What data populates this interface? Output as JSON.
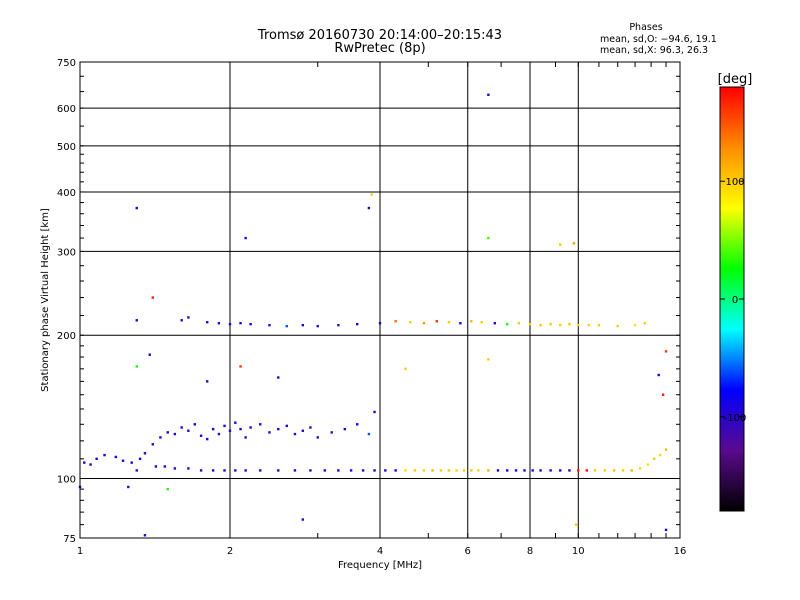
{
  "chart_data": {
    "type": "scatter",
    "title": "Tromsø 20160730 20:14:00–20:15:43",
    "subtitle": "RwPretec (8p)",
    "xlabel": "Frequency [MHz]",
    "ylabel": "Stationary phase Virtual Height [km]",
    "x_scale": "log",
    "y_scale": "log",
    "xlim": [
      1,
      16
    ],
    "ylim": [
      75,
      750
    ],
    "x_ticks": [
      1,
      2,
      4,
      6,
      8,
      10,
      16
    ],
    "x_tick_labels": [
      "1",
      "2",
      "4",
      "6",
      "8",
      "10",
      "16"
    ],
    "y_ticks": [
      75,
      100,
      200,
      300,
      400,
      500,
      600,
      750
    ],
    "y_tick_labels": [
      "75",
      "100",
      "200",
      "300",
      "400",
      "500",
      "600",
      "750"
    ],
    "grid": true,
    "legend": {
      "title": "Phases",
      "lines": [
        "mean, sd,O: −94.6, 19.1",
        "mean, sd,X:  96.3, 26.3"
      ],
      "placement": "top-right"
    },
    "colorbar": {
      "label": "[deg]",
      "range": [
        -180,
        180
      ],
      "ticks": [
        100,
        0,
        -100
      ],
      "tick_labels": [
        "100",
        "0",
        "-100"
      ],
      "colors": [
        "#ff0000",
        "#ff8c00",
        "#ffff00",
        "#00ff00",
        "#00ffff",
        "#0000ff",
        "#5a0a8c",
        "#000000"
      ]
    },
    "series": [
      {
        "values": [
          [
            1.02,
            108,
            -95
          ],
          [
            1.05,
            107,
            -100
          ],
          [
            1.08,
            110,
            -90
          ],
          [
            1.12,
            112,
            -92
          ],
          [
            1.18,
            111,
            -95
          ],
          [
            1.22,
            109,
            -98
          ],
          [
            1.27,
            108,
            -100
          ],
          [
            1.32,
            110,
            -95
          ],
          [
            1.35,
            113,
            -98
          ],
          [
            1.4,
            118,
            -100
          ],
          [
            1.45,
            122,
            -95
          ],
          [
            1.5,
            125,
            -92
          ],
          [
            1.55,
            124,
            -100
          ],
          [
            1.6,
            128,
            -98
          ],
          [
            1.65,
            126,
            -102
          ],
          [
            1.7,
            130,
            -95
          ],
          [
            1.75,
            123,
            -100
          ],
          [
            1.8,
            121,
            -96
          ],
          [
            1.85,
            127,
            -99
          ],
          [
            1.9,
            124,
            -101
          ],
          [
            1.95,
            129,
            -94
          ],
          [
            2.0,
            126,
            -97
          ],
          [
            2.05,
            131,
            -98
          ],
          [
            2.1,
            127,
            -100
          ],
          [
            2.15,
            122,
            -103
          ],
          [
            2.2,
            128,
            -96
          ],
          [
            2.3,
            130,
            -99
          ],
          [
            2.4,
            125,
            -100
          ],
          [
            2.5,
            127,
            -95
          ],
          [
            2.6,
            129,
            -98
          ],
          [
            2.7,
            124,
            -100
          ],
          [
            2.8,
            126,
            -97
          ],
          [
            2.9,
            128,
            -96
          ],
          [
            3.0,
            122,
            -99
          ],
          [
            3.2,
            125,
            -100
          ],
          [
            3.4,
            127,
            -96
          ],
          [
            3.6,
            130,
            -80
          ],
          [
            3.8,
            124,
            -60
          ],
          [
            1.42,
            106,
            -100
          ],
          [
            1.48,
            106,
            -98
          ],
          [
            1.55,
            105,
            -100
          ],
          [
            1.65,
            105,
            -102
          ],
          [
            1.75,
            104,
            -97
          ],
          [
            1.85,
            104,
            -100
          ],
          [
            1.95,
            104,
            -99
          ],
          [
            2.05,
            104,
            -101
          ],
          [
            2.15,
            104,
            -98
          ],
          [
            2.3,
            104,
            -100
          ],
          [
            2.5,
            104,
            -97
          ],
          [
            2.7,
            104,
            -99
          ],
          [
            2.9,
            104,
            -100
          ],
          [
            3.1,
            104,
            -98
          ],
          [
            3.3,
            104,
            -101
          ],
          [
            3.5,
            104,
            -99
          ],
          [
            3.7,
            104,
            -97
          ],
          [
            3.9,
            104,
            -95
          ],
          [
            4.1,
            104,
            -90
          ],
          [
            4.3,
            104,
            -85
          ],
          [
            4.5,
            104,
            90
          ],
          [
            4.7,
            104,
            100
          ],
          [
            4.9,
            104,
            95
          ],
          [
            5.1,
            104,
            110
          ],
          [
            5.3,
            104,
            98
          ],
          [
            5.5,
            104,
            102
          ],
          [
            5.7,
            104,
            96
          ],
          [
            5.9,
            104,
            100
          ],
          [
            6.1,
            104,
            105
          ],
          [
            6.3,
            104,
            98
          ],
          [
            6.6,
            104,
            110
          ],
          [
            6.9,
            104,
            -95
          ],
          [
            7.2,
            104,
            -100
          ],
          [
            7.5,
            104,
            -98
          ],
          [
            7.8,
            104,
            -100
          ],
          [
            8.1,
            104,
            -97
          ],
          [
            8.4,
            104,
            -100
          ],
          [
            8.8,
            104,
            -99
          ],
          [
            9.2,
            104,
            -95
          ],
          [
            9.6,
            104,
            -100
          ],
          [
            10.0,
            104,
            170
          ],
          [
            10.4,
            104,
            175
          ],
          [
            10.8,
            104,
            100
          ],
          [
            11.3,
            104,
            98
          ],
          [
            11.8,
            104,
            105
          ],
          [
            12.3,
            104,
            100
          ],
          [
            12.8,
            104,
            110
          ],
          [
            13.3,
            105,
            95
          ],
          [
            13.8,
            107,
            90
          ],
          [
            14.2,
            110,
            100
          ],
          [
            14.6,
            112,
            95
          ],
          [
            15.0,
            115,
            105
          ],
          [
            1.6,
            215,
            -95
          ],
          [
            1.65,
            218,
            -100
          ],
          [
            1.8,
            213,
            -98
          ],
          [
            1.9,
            212,
            -100
          ],
          [
            2.0,
            211,
            -97
          ],
          [
            2.1,
            212,
            -99
          ],
          [
            2.2,
            211,
            -100
          ],
          [
            2.4,
            210,
            -95
          ],
          [
            2.6,
            209,
            -60
          ],
          [
            2.8,
            210,
            -98
          ],
          [
            3.0,
            209,
            -100
          ],
          [
            3.3,
            210,
            -97
          ],
          [
            3.6,
            211,
            -99
          ],
          [
            4.0,
            212,
            -95
          ],
          [
            4.3,
            214,
            140
          ],
          [
            4.6,
            213,
            100
          ],
          [
            4.9,
            212,
            120
          ],
          [
            5.2,
            214,
            160
          ],
          [
            5.5,
            213,
            100
          ],
          [
            5.8,
            212,
            -90
          ],
          [
            6.1,
            214,
            110
          ],
          [
            6.4,
            213,
            100
          ],
          [
            6.8,
            212,
            -95
          ],
          [
            7.2,
            211,
            30
          ],
          [
            7.6,
            212,
            100
          ],
          [
            8.0,
            211,
            95
          ],
          [
            8.4,
            210,
            105
          ],
          [
            8.8,
            211,
            100
          ],
          [
            9.2,
            210,
            98
          ],
          [
            9.6,
            211,
            102
          ],
          [
            10.0,
            210,
            100
          ],
          [
            10.5,
            210,
            98
          ],
          [
            11.0,
            210,
            100
          ],
          [
            12.0,
            209,
            100
          ],
          [
            13.0,
            210,
            90
          ],
          [
            13.6,
            212,
            100
          ],
          [
            1.3,
            370,
            -100
          ],
          [
            2.15,
            320,
            -100
          ],
          [
            3.8,
            370,
            -98
          ],
          [
            3.85,
            395,
            100
          ],
          [
            6.6,
            640,
            -100
          ],
          [
            6.6,
            320,
            40
          ],
          [
            9.2,
            310,
            100
          ],
          [
            9.8,
            312,
            120
          ],
          [
            1.3,
            215,
            -95
          ],
          [
            1.4,
            240,
            170
          ],
          [
            1.3,
            172,
            30
          ],
          [
            1.38,
            182,
            -100
          ],
          [
            1.8,
            160,
            -100
          ],
          [
            2.5,
            163,
            -100
          ],
          [
            2.1,
            172,
            160
          ],
          [
            3.9,
            138,
            -100
          ],
          [
            4.5,
            170,
            100
          ],
          [
            6.6,
            178,
            100
          ],
          [
            15.0,
            185,
            160
          ],
          [
            14.5,
            165,
            -90
          ],
          [
            14.8,
            150,
            170
          ],
          [
            1.3,
            104,
            -95
          ],
          [
            1.25,
            96,
            -100
          ],
          [
            1.5,
            95,
            30
          ],
          [
            1.0,
            96,
            -95
          ],
          [
            2.8,
            82,
            -100
          ],
          [
            9.9,
            80,
            100
          ],
          [
            15.0,
            78,
            -95
          ],
          [
            1.35,
            76,
            -100
          ]
        ]
      }
    ]
  }
}
